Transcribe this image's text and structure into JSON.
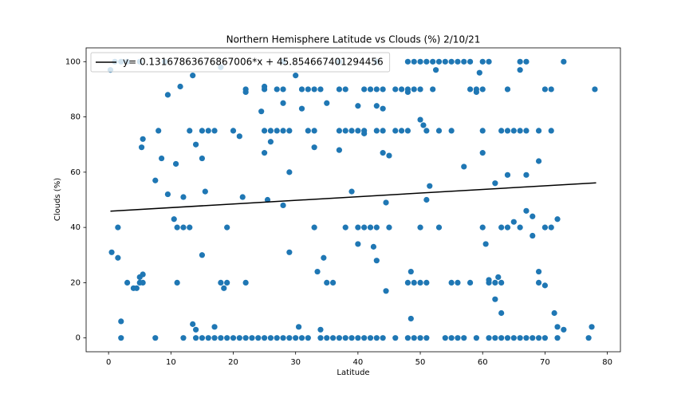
{
  "chart_data": {
    "type": "scatter",
    "title": "Northern Hemisphere Latitude vs Clouds (%) 2/10/21",
    "x_label": "Latitude",
    "y_label": "Clouds (%)",
    "xlim": [
      -3.6,
      82.1
    ],
    "ylim": [
      -5,
      105
    ],
    "xticks": [
      0,
      10,
      20,
      30,
      40,
      50,
      60,
      70,
      80
    ],
    "yticks": [
      0,
      20,
      40,
      60,
      80,
      100
    ],
    "legend": "upper left",
    "series": [
      {
        "color": "#1f77b4",
        "x": [
          1,
          2,
          3,
          5,
          9,
          28,
          37,
          43,
          48,
          49,
          50,
          51,
          52,
          53,
          54,
          55,
          56,
          57,
          58,
          60,
          61,
          66,
          67,
          73,
          2,
          7.5,
          12,
          14,
          15,
          16,
          17,
          18,
          19,
          20,
          21,
          22,
          23,
          24,
          25,
          26,
          27,
          28,
          29,
          30,
          31,
          32,
          34,
          35,
          36,
          37,
          38,
          39,
          40,
          41,
          42,
          43,
          44,
          46,
          48,
          49,
          50,
          51,
          54,
          55,
          56,
          57,
          59,
          61,
          62,
          63,
          64,
          65,
          66,
          67,
          68,
          69,
          70,
          72,
          77,
          22,
          25,
          27,
          28,
          31,
          32,
          33,
          34,
          37,
          38,
          41,
          42,
          43,
          44,
          46,
          47,
          48,
          49,
          50,
          52,
          58,
          59,
          60,
          64,
          70,
          71,
          78,
          8,
          13,
          15,
          16,
          17,
          20,
          25,
          26,
          27,
          28,
          29,
          32,
          33,
          37,
          38,
          39,
          40,
          41,
          43,
          44,
          46,
          47,
          48,
          51,
          53,
          55,
          60,
          63,
          64,
          65,
          66,
          67,
          69,
          71,
          1.5,
          11,
          12,
          13,
          19,
          33,
          38,
          40,
          41,
          42,
          43,
          45,
          50,
          53,
          60,
          63,
          64,
          66,
          70,
          71,
          3,
          5,
          18,
          19,
          22,
          35,
          36,
          48,
          49,
          50,
          51,
          55,
          56,
          58,
          61,
          62,
          63,
          69,
          0.3,
          0.5,
          1.5,
          2,
          4,
          4.5,
          5,
          5.5,
          5.5,
          5.3,
          5.5,
          7.5,
          8.5,
          9.5,
          9.5,
          10.5,
          10.8,
          11,
          11.5,
          12,
          13.5,
          14,
          13.5,
          14,
          15,
          15,
          15.5,
          17,
          18,
          18.5,
          21,
          21.5,
          22,
          24.5,
          25,
          25,
          25.5,
          26,
          28,
          28,
          29,
          29,
          30,
          30.5,
          31,
          33,
          33.5,
          34.5,
          34,
          35,
          37,
          39,
          40,
          40,
          41,
          42.5,
          43,
          43,
          44,
          44,
          44.5,
          45,
          44.5,
          48,
          48.5,
          48.5,
          50,
          50.5,
          51,
          51.5,
          52.5,
          57,
          59,
          59.5,
          60,
          60.5,
          61,
          62,
          62,
          62.5,
          63,
          64,
          65,
          66,
          67,
          67,
          68,
          68,
          69,
          69,
          70,
          71.5,
          72,
          73,
          77.5,
          72
        ],
        "values": [
          100,
          100,
          100,
          100,
          100,
          100,
          100,
          100,
          100,
          100,
          100,
          100,
          100,
          100,
          100,
          100,
          100,
          100,
          100,
          100,
          100,
          100,
          100,
          100,
          0,
          0,
          0,
          0,
          0,
          0,
          0,
          0,
          0,
          0,
          0,
          0,
          0,
          0,
          0,
          0,
          0,
          0,
          0,
          0,
          0,
          0,
          0,
          0,
          0,
          0,
          0,
          0,
          0,
          0,
          0,
          0,
          0,
          0,
          0,
          0,
          0,
          0,
          0,
          0,
          0,
          0,
          0,
          0,
          0,
          0,
          0,
          0,
          0,
          0,
          0,
          0,
          0,
          0,
          0,
          90,
          90,
          90,
          90,
          90,
          90,
          90,
          90,
          90,
          90,
          90,
          90,
          90,
          90,
          90,
          90,
          90,
          90,
          90,
          90,
          90,
          90,
          90,
          90,
          90,
          90,
          90,
          75,
          75,
          75,
          75,
          75,
          75,
          75,
          75,
          75,
          75,
          75,
          75,
          75,
          75,
          75,
          75,
          75,
          75,
          75,
          75,
          75,
          75,
          75,
          75,
          75,
          75,
          75,
          75,
          75,
          75,
          75,
          75,
          75,
          75,
          40,
          40,
          40,
          40,
          40,
          40,
          40,
          40,
          40,
          40,
          40,
          40,
          40,
          40,
          40,
          40,
          40,
          40,
          40,
          40,
          20,
          20,
          20,
          20,
          20,
          20,
          20,
          20,
          20,
          20,
          20,
          20,
          20,
          20,
          20,
          20,
          20,
          20,
          97,
          31,
          29,
          6,
          18,
          18,
          22,
          20,
          23,
          69,
          72,
          57,
          65,
          52,
          88,
          43,
          63,
          20,
          91,
          51,
          95,
          70,
          5,
          3,
          30,
          65,
          53,
          4,
          98,
          18,
          73,
          51,
          89,
          82,
          67,
          91,
          50,
          71,
          48,
          85,
          60,
          31,
          95,
          4,
          83,
          69,
          24,
          29,
          3,
          85,
          68,
          53,
          34,
          84,
          74,
          33,
          28,
          84,
          83,
          67,
          49,
          66,
          17,
          89,
          7,
          24,
          79,
          77,
          50,
          55,
          97,
          62,
          89,
          96,
          67,
          34,
          21,
          56,
          14,
          22,
          9,
          59,
          42,
          97,
          46,
          59,
          37,
          44,
          64,
          24,
          19,
          9,
          43,
          3,
          4,
          4
        ]
      },
      {
        "type": "line",
        "name": "y= 0.13167863676867006*x + 45.854667401294456",
        "color": "#000000",
        "x": [
          0.3,
          78.2
        ],
        "values": [
          45.89,
          56.15
        ]
      }
    ]
  }
}
